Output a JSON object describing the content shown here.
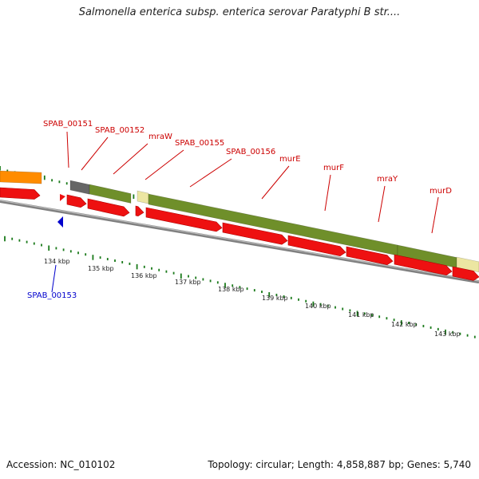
{
  "title": "Salmonella enterica subsp. enterica serovar Paratyphi B str....",
  "footer": {
    "accession": "Accession: NC_010102",
    "topology": "Topology: circular; Length: 4,858,887 bp; Genes: 5,740"
  },
  "colors": {
    "cds_red": "#ee1111",
    "track_olive": "#6f8f2a",
    "track_orange": "#ff8c00",
    "track_gray": "#666666",
    "track_khaki": "#ece6a2",
    "gene_label_red": "#cc0000",
    "gene_label_blue": "#0000cc",
    "tick_green": "#1a7a1a",
    "backbone_gray": "#808080"
  },
  "gene_labels": [
    {
      "text": "SPAB_00151",
      "color": "red"
    },
    {
      "text": "SPAB_00152",
      "color": "red"
    },
    {
      "text": "mraW",
      "color": "red"
    },
    {
      "text": "SPAB_00155",
      "color": "red"
    },
    {
      "text": "SPAB_00156",
      "color": "red"
    },
    {
      "text": "murE",
      "color": "red"
    },
    {
      "text": "murF",
      "color": "red"
    },
    {
      "text": "mraY",
      "color": "red"
    },
    {
      "text": "murD",
      "color": "red"
    },
    {
      "text": "SPAB_00153",
      "color": "blue"
    }
  ],
  "scale_labels": [
    "134 kbp",
    "135 kbp",
    "136 kbp",
    "137 kbp",
    "138 kbp",
    "139 kbp",
    "140 kbp",
    "141 kbp",
    "142 kbp",
    "143 kbp"
  ]
}
